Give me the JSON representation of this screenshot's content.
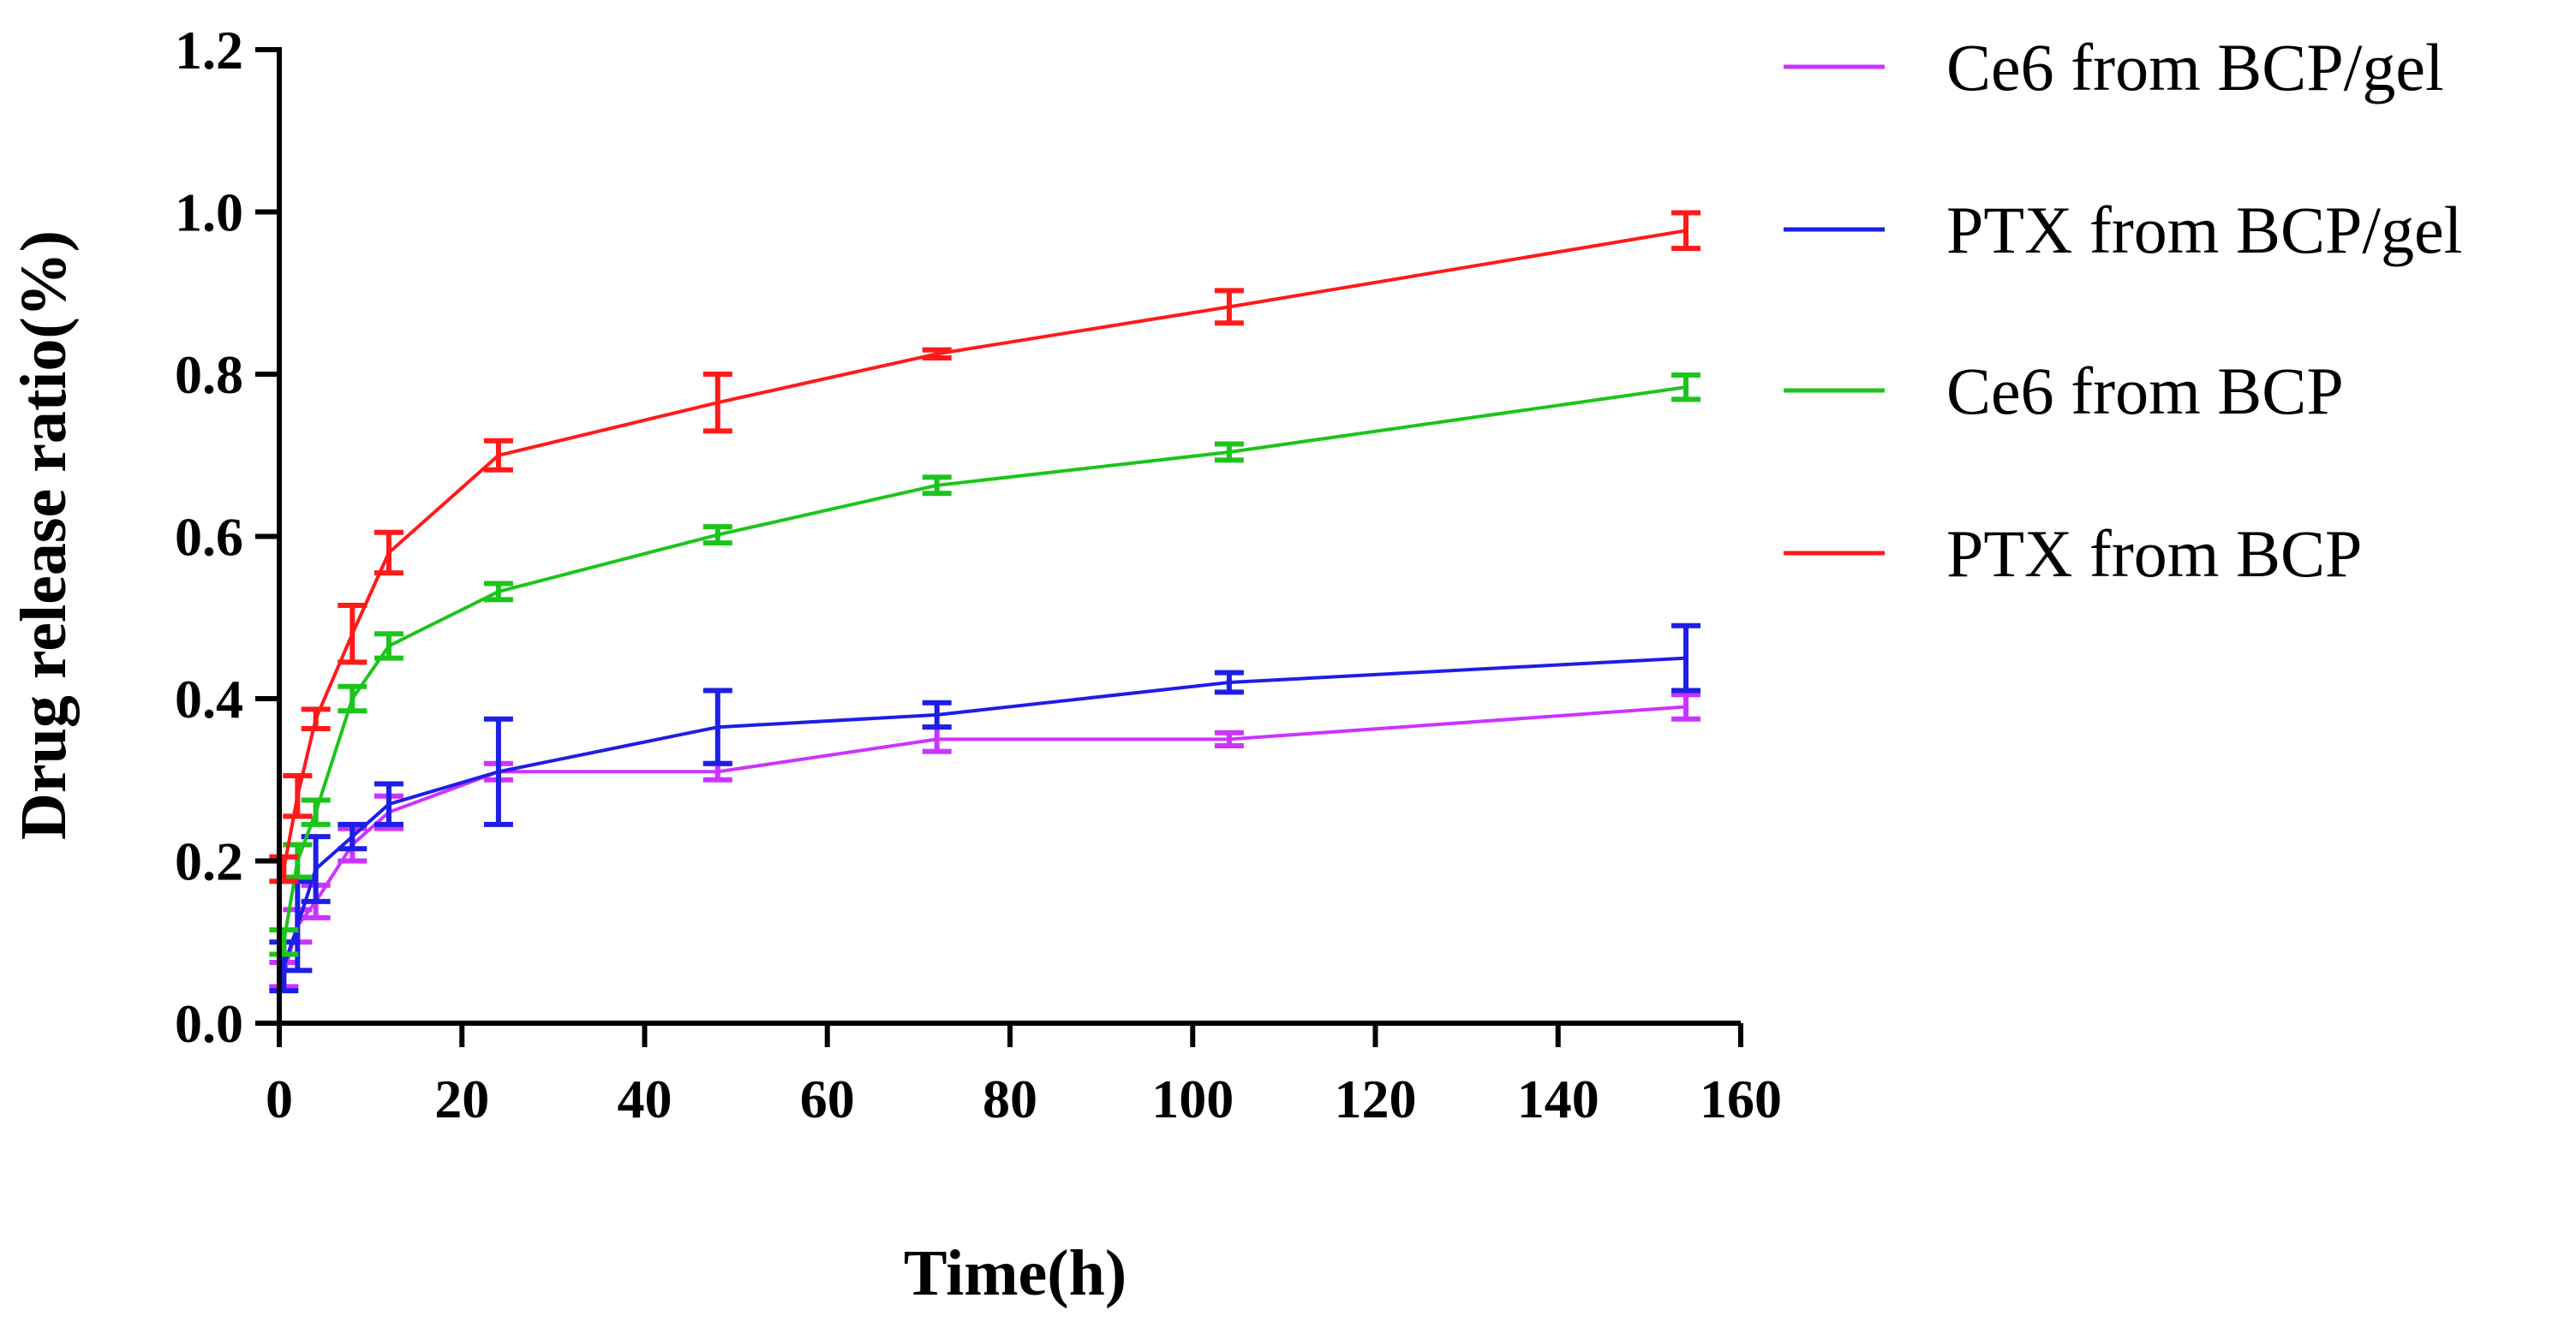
{
  "chart_data": {
    "type": "line",
    "title": "",
    "xlabel": "Time(h)",
    "ylabel": "Drug release ratio(%)",
    "xlim": [
      0,
      160
    ],
    "ylim": [
      0,
      1.2
    ],
    "x_ticks": [
      0,
      20,
      40,
      60,
      80,
      100,
      120,
      140,
      160
    ],
    "x_tick_labels": [
      "0",
      "20",
      "40",
      "60",
      "80",
      "100",
      "120",
      "140",
      "160"
    ],
    "y_ticks": [
      0,
      0.2,
      0.4,
      0.6,
      0.8,
      1.0,
      1.2
    ],
    "y_tick_labels": [
      "0.0",
      "0.2",
      "0.4",
      "0.6",
      "0.8",
      "1.0",
      "1.2"
    ],
    "grid": false,
    "legend_position": "right",
    "series": [
      {
        "name": "Ce6 from BCP/gel",
        "color": "#CC33FF",
        "x": [
          0.5,
          2,
          4,
          8,
          12,
          24,
          48,
          72,
          104,
          154
        ],
        "values": [
          0.06,
          0.12,
          0.15,
          0.22,
          0.26,
          0.31,
          0.31,
          0.35,
          0.35,
          0.39
        ],
        "errors": [
          0.015,
          0.02,
          0.02,
          0.02,
          0.02,
          0.01,
          0.01,
          0.015,
          0.008,
          0.015
        ]
      },
      {
        "name": "PTX from BCP/gel",
        "color": "#1E1EE6",
        "x": [
          0.5,
          2,
          4,
          8,
          12,
          24,
          48,
          72,
          104,
          154
        ],
        "values": [
          0.07,
          0.12,
          0.19,
          0.23,
          0.27,
          0.31,
          0.365,
          0.38,
          0.42,
          0.45
        ],
        "errors": [
          0.03,
          0.055,
          0.04,
          0.015,
          0.025,
          0.065,
          0.045,
          0.015,
          0.012,
          0.04
        ]
      },
      {
        "name": "Ce6 from BCP",
        "color": "#1CC41C",
        "x": [
          0.5,
          2,
          4,
          8,
          12,
          24,
          48,
          72,
          104,
          154
        ],
        "values": [
          0.1,
          0.2,
          0.26,
          0.4,
          0.465,
          0.532,
          0.602,
          0.663,
          0.704,
          0.784
        ],
        "errors": [
          0.015,
          0.02,
          0.015,
          0.015,
          0.015,
          0.01,
          0.01,
          0.01,
          0.01,
          0.015
        ]
      },
      {
        "name": "PTX from BCP",
        "color": "#FF1A1A",
        "x": [
          0.5,
          2,
          4,
          8,
          12,
          24,
          48,
          72,
          104,
          154
        ],
        "values": [
          0.19,
          0.28,
          0.375,
          0.48,
          0.58,
          0.7,
          0.765,
          0.825,
          0.883,
          0.977
        ],
        "errors": [
          0.015,
          0.025,
          0.012,
          0.035,
          0.025,
          0.018,
          0.035,
          0.005,
          0.02,
          0.022
        ]
      }
    ]
  }
}
